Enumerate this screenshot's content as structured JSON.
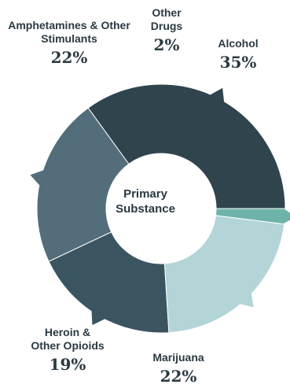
{
  "chart_data": {
    "type": "pie",
    "donut": true,
    "center_label": "Primary Substance",
    "slices": [
      {
        "label": "Alcohol",
        "value": 35,
        "display": "35%",
        "color": "#2f444d"
      },
      {
        "label": "Marijuana",
        "value": 22,
        "display": "22%",
        "color": "#536e7a"
      },
      {
        "label": "Heroin & Other Opioids",
        "value": 19,
        "display": "19%",
        "color": "#3a5560"
      },
      {
        "label": "Amphetamines & Other Stimulants",
        "value": 22,
        "display": "22%",
        "color": "#b3d5d8"
      },
      {
        "label": "Other Drugs",
        "value": 2,
        "display": "2%",
        "color": "#6db3a9"
      }
    ]
  }
}
